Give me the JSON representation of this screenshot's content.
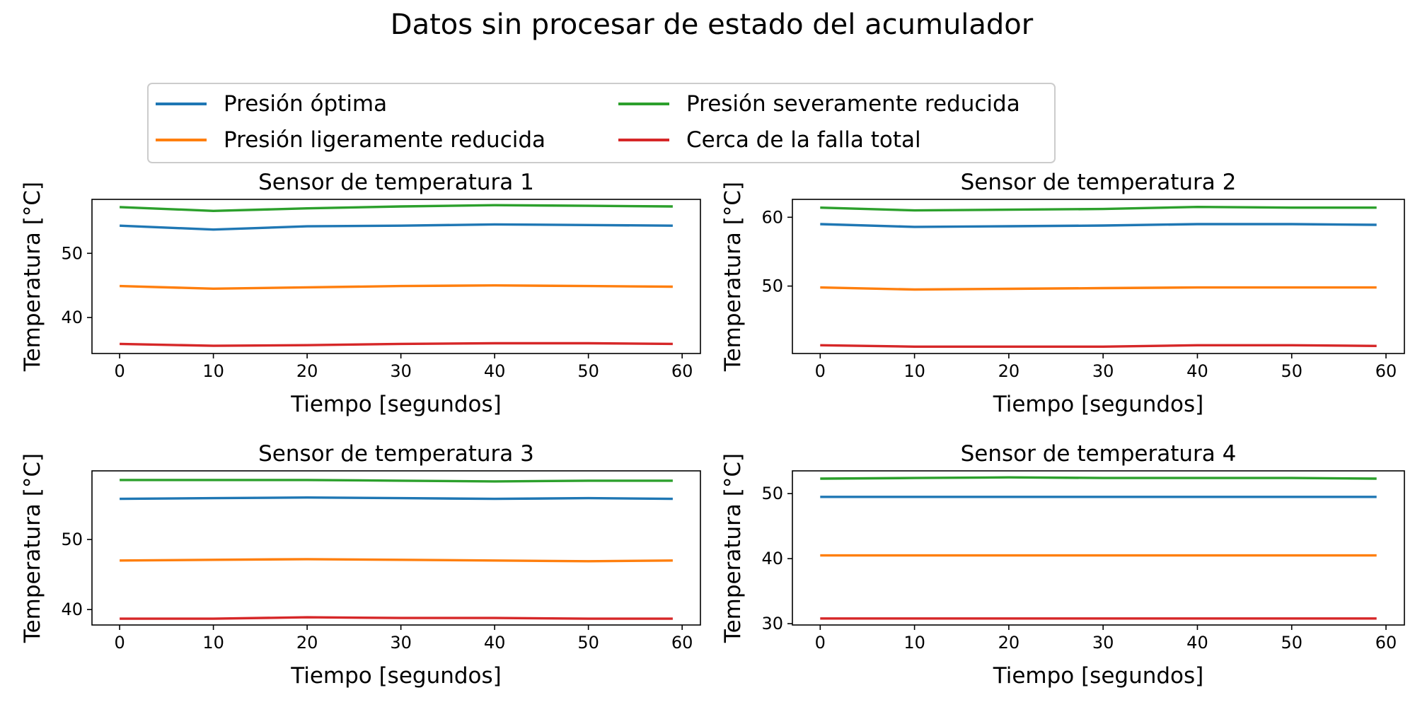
{
  "figure": {
    "title": "Datos sin procesar de estado del acumulador",
    "legend": {
      "placement": "top-left, above panels, 2 columns",
      "entries": [
        {
          "label": "Presión óptima",
          "color": "#1f77b4"
        },
        {
          "label": "Presión ligeramente reducida",
          "color": "#ff7f0e"
        },
        {
          "label": "Presión severamente reducida",
          "color": "#2ca02c"
        },
        {
          "label": "Cerca de la falla total",
          "color": "#d62728"
        }
      ]
    }
  },
  "chart_data": [
    {
      "type": "line",
      "title": "Sensor de temperatura 1",
      "xlabel": "Tiempo [segundos]",
      "ylabel": "Temperatura [°C]",
      "xlim": [
        -2.95,
        61.95
      ],
      "ylim": [
        34.4,
        58.4
      ],
      "xticks": [
        0,
        10,
        20,
        30,
        40,
        50,
        60
      ],
      "yticks": [
        40,
        50
      ],
      "grid": false,
      "series": [
        {
          "name": "Presión óptima",
          "color": "#1f77b4",
          "x": [
            0,
            10,
            20,
            30,
            40,
            50,
            59
          ],
          "values": [
            54.3,
            53.7,
            54.2,
            54.3,
            54.5,
            54.4,
            54.3
          ]
        },
        {
          "name": "Presión ligeramente reducida",
          "color": "#ff7f0e",
          "x": [
            0,
            10,
            20,
            30,
            40,
            50,
            59
          ],
          "values": [
            44.9,
            44.5,
            44.7,
            44.9,
            45.0,
            44.9,
            44.8
          ]
        },
        {
          "name": "Presión severamente reducida",
          "color": "#2ca02c",
          "x": [
            0,
            10,
            20,
            30,
            40,
            50,
            59
          ],
          "values": [
            57.2,
            56.6,
            57.0,
            57.3,
            57.5,
            57.4,
            57.3
          ]
        },
        {
          "name": "Cerca de la falla total",
          "color": "#d62728",
          "x": [
            0,
            10,
            20,
            30,
            40,
            50,
            59
          ],
          "values": [
            35.9,
            35.6,
            35.7,
            35.9,
            36.0,
            36.0,
            35.9
          ]
        }
      ]
    },
    {
      "type": "line",
      "title": "Sensor de temperatura 2",
      "xlabel": "Tiempo [segundos]",
      "ylabel": "Temperatura [°C]",
      "xlim": [
        -2.95,
        61.95
      ],
      "ylim": [
        40.2,
        62.6
      ],
      "xticks": [
        0,
        10,
        20,
        30,
        40,
        50,
        60
      ],
      "yticks": [
        50,
        60
      ],
      "grid": false,
      "series": [
        {
          "name": "Presión óptima",
          "color": "#1f77b4",
          "x": [
            0,
            10,
            20,
            30,
            40,
            50,
            59
          ],
          "values": [
            59.0,
            58.6,
            58.7,
            58.8,
            59.0,
            59.0,
            58.9
          ]
        },
        {
          "name": "Presión ligeramente reducida",
          "color": "#ff7f0e",
          "x": [
            0,
            10,
            20,
            30,
            40,
            50,
            59
          ],
          "values": [
            49.8,
            49.5,
            49.6,
            49.7,
            49.8,
            49.8,
            49.8
          ]
        },
        {
          "name": "Presión severamente reducida",
          "color": "#2ca02c",
          "x": [
            0,
            10,
            20,
            30,
            40,
            50,
            59
          ],
          "values": [
            61.4,
            61.0,
            61.1,
            61.2,
            61.5,
            61.4,
            61.4
          ]
        },
        {
          "name": "Cerca de la falla total",
          "color": "#d62728",
          "x": [
            0,
            10,
            20,
            30,
            40,
            50,
            59
          ],
          "values": [
            41.4,
            41.2,
            41.2,
            41.2,
            41.4,
            41.4,
            41.3
          ]
        }
      ]
    },
    {
      "type": "line",
      "title": "Sensor de temperatura 3",
      "xlabel": "Tiempo [segundos]",
      "ylabel": "Temperatura [°C]",
      "xlim": [
        -2.95,
        61.95
      ],
      "ylim": [
        37.8,
        59.8
      ],
      "xticks": [
        0,
        10,
        20,
        30,
        40,
        50,
        60
      ],
      "yticks": [
        40,
        50
      ],
      "grid": false,
      "series": [
        {
          "name": "Presión óptima",
          "color": "#1f77b4",
          "x": [
            0,
            10,
            20,
            30,
            40,
            50,
            59
          ],
          "values": [
            55.8,
            55.9,
            56.0,
            55.9,
            55.8,
            55.9,
            55.8
          ]
        },
        {
          "name": "Presión ligeramente reducida",
          "color": "#ff7f0e",
          "x": [
            0,
            10,
            20,
            30,
            40,
            50,
            59
          ],
          "values": [
            47.0,
            47.1,
            47.2,
            47.1,
            47.0,
            46.9,
            47.0
          ]
        },
        {
          "name": "Presión severamente reducida",
          "color": "#2ca02c",
          "x": [
            0,
            10,
            20,
            30,
            40,
            50,
            59
          ],
          "values": [
            58.5,
            58.5,
            58.5,
            58.4,
            58.3,
            58.4,
            58.4
          ]
        },
        {
          "name": "Cerca de la falla total",
          "color": "#d62728",
          "x": [
            0,
            10,
            20,
            30,
            40,
            50,
            59
          ],
          "values": [
            38.7,
            38.7,
            38.9,
            38.8,
            38.8,
            38.7,
            38.7
          ]
        }
      ]
    },
    {
      "type": "line",
      "title": "Sensor de temperatura 4",
      "xlabel": "Tiempo [segundos]",
      "ylabel": "Temperatura [°C]",
      "xlim": [
        -2.95,
        61.95
      ],
      "ylim": [
        29.8,
        53.5
      ],
      "xticks": [
        0,
        10,
        20,
        30,
        40,
        50,
        60
      ],
      "yticks": [
        30,
        40,
        50
      ],
      "grid": false,
      "series": [
        {
          "name": "Presión óptima",
          "color": "#1f77b4",
          "x": [
            0,
            10,
            20,
            30,
            40,
            50,
            59
          ],
          "values": [
            49.5,
            49.5,
            49.5,
            49.5,
            49.5,
            49.5,
            49.5
          ]
        },
        {
          "name": "Presión ligeramente reducida",
          "color": "#ff7f0e",
          "x": [
            0,
            10,
            20,
            30,
            40,
            50,
            59
          ],
          "values": [
            40.5,
            40.5,
            40.5,
            40.5,
            40.5,
            40.5,
            40.5
          ]
        },
        {
          "name": "Presión severamente reducida",
          "color": "#2ca02c",
          "x": [
            0,
            10,
            20,
            30,
            40,
            50,
            59
          ],
          "values": [
            52.3,
            52.4,
            52.5,
            52.4,
            52.4,
            52.4,
            52.3
          ]
        },
        {
          "name": "Cerca de la falla total",
          "color": "#d62728",
          "x": [
            0,
            10,
            20,
            30,
            40,
            50,
            59
          ],
          "values": [
            30.8,
            30.8,
            30.8,
            30.8,
            30.8,
            30.8,
            30.8
          ]
        }
      ]
    }
  ]
}
